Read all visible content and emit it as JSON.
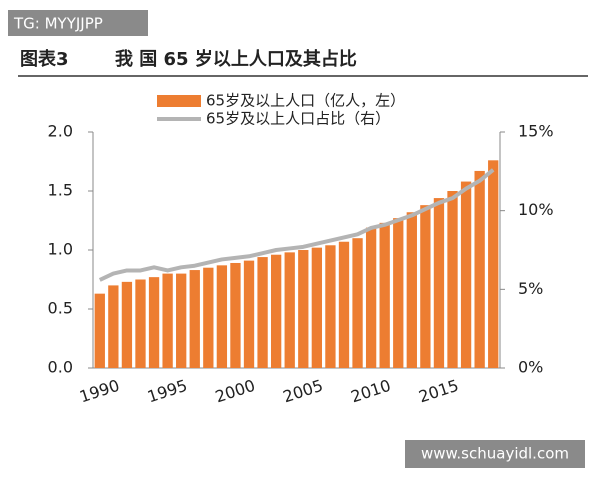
{
  "watermark": "TG: MYYJJPP",
  "figure_label": "图表3",
  "site_watermark": "www.schuayidl.com",
  "chart_data": {
    "type": "bar-line",
    "title": "我 国 65 岁以上人口及其占比",
    "categories": [
      "1990",
      null,
      null,
      null,
      null,
      "1995",
      null,
      null,
      null,
      null,
      "2000",
      null,
      null,
      null,
      null,
      "2005",
      null,
      null,
      null,
      null,
      "2010",
      null,
      null,
      null,
      null,
      "2015",
      null,
      null,
      null,
      null
    ],
    "series": [
      {
        "name": "65岁及以上人口（亿人，左）",
        "color": "#ed7d31",
        "type": "bar",
        "values": [
          0.63,
          0.7,
          0.73,
          0.75,
          0.77,
          0.8,
          0.8,
          0.83,
          0.85,
          0.87,
          0.89,
          0.91,
          0.94,
          0.96,
          0.98,
          1.0,
          1.02,
          1.04,
          1.07,
          1.1,
          1.19,
          1.23,
          1.27,
          1.32,
          1.38,
          1.44,
          1.5,
          1.58,
          1.67,
          1.76
        ]
      },
      {
        "name": "65岁及以上人口占比（右）",
        "color": "#b4b4b4",
        "type": "line",
        "axis": "y2",
        "values": [
          5.6,
          6.0,
          6.2,
          6.2,
          6.4,
          6.2,
          6.4,
          6.5,
          6.7,
          6.9,
          7.0,
          7.1,
          7.3,
          7.5,
          7.6,
          7.7,
          7.9,
          8.1,
          8.3,
          8.5,
          8.9,
          9.1,
          9.4,
          9.7,
          10.1,
          10.5,
          10.8,
          11.4,
          11.9,
          12.6
        ]
      }
    ],
    "ylim": [
      0,
      2.0
    ],
    "yticks": [
      {
        "value": 0,
        "label": "0.0"
      },
      0.5,
      {
        "value": 1,
        "label": "1.0"
      },
      1.5,
      {
        "value": 2,
        "label": "2.0"
      }
    ],
    "y2lim": [
      0,
      15
    ],
    "y2ticks": [
      {
        "value": 0,
        "label": "0%"
      },
      {
        "value": 5,
        "label": "5%"
      },
      {
        "value": 10,
        "label": "10%"
      },
      {
        "value": 15,
        "label": "15%"
      }
    ]
  }
}
